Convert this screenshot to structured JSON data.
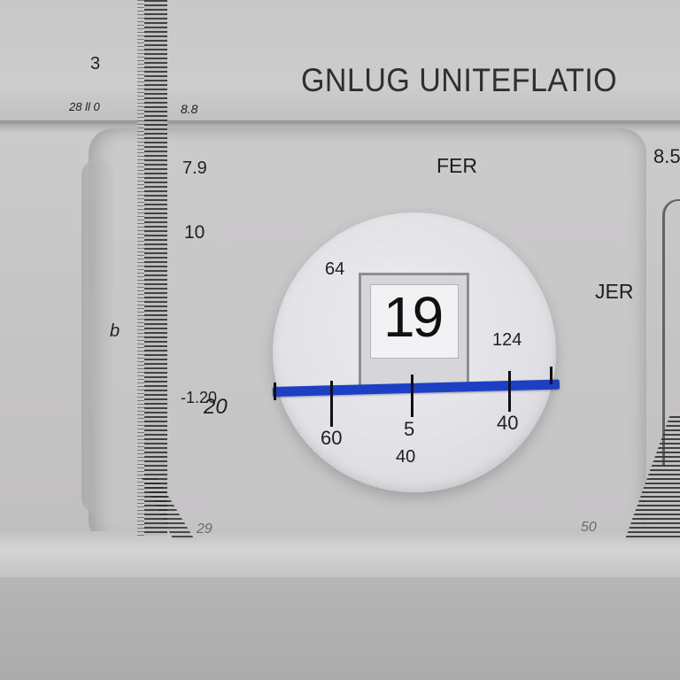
{
  "title": "GNLUG UNITEFLATIO",
  "top_left_labels": {
    "number_3": "3",
    "scale_a": "28 ll 0",
    "scale_b": "8.8",
    "top_right": "8.5"
  },
  "ruler_labels": [
    "7.9",
    "10",
    "b",
    "-1.20",
    "20"
  ],
  "panel_labels": {
    "upper": "FER",
    "right": "JER"
  },
  "dial": {
    "window_value": "19",
    "upper_left": "64",
    "upper_right": "124",
    "scale_ticks": [
      "60",
      "5",
      "40"
    ],
    "bottom": "40"
  },
  "bottom_labels": {
    "left": "29",
    "right": "50"
  },
  "colors": {
    "indicator": "#1c3fc4",
    "panel": "#c8c7c8",
    "ink": "#1f1f1f"
  }
}
